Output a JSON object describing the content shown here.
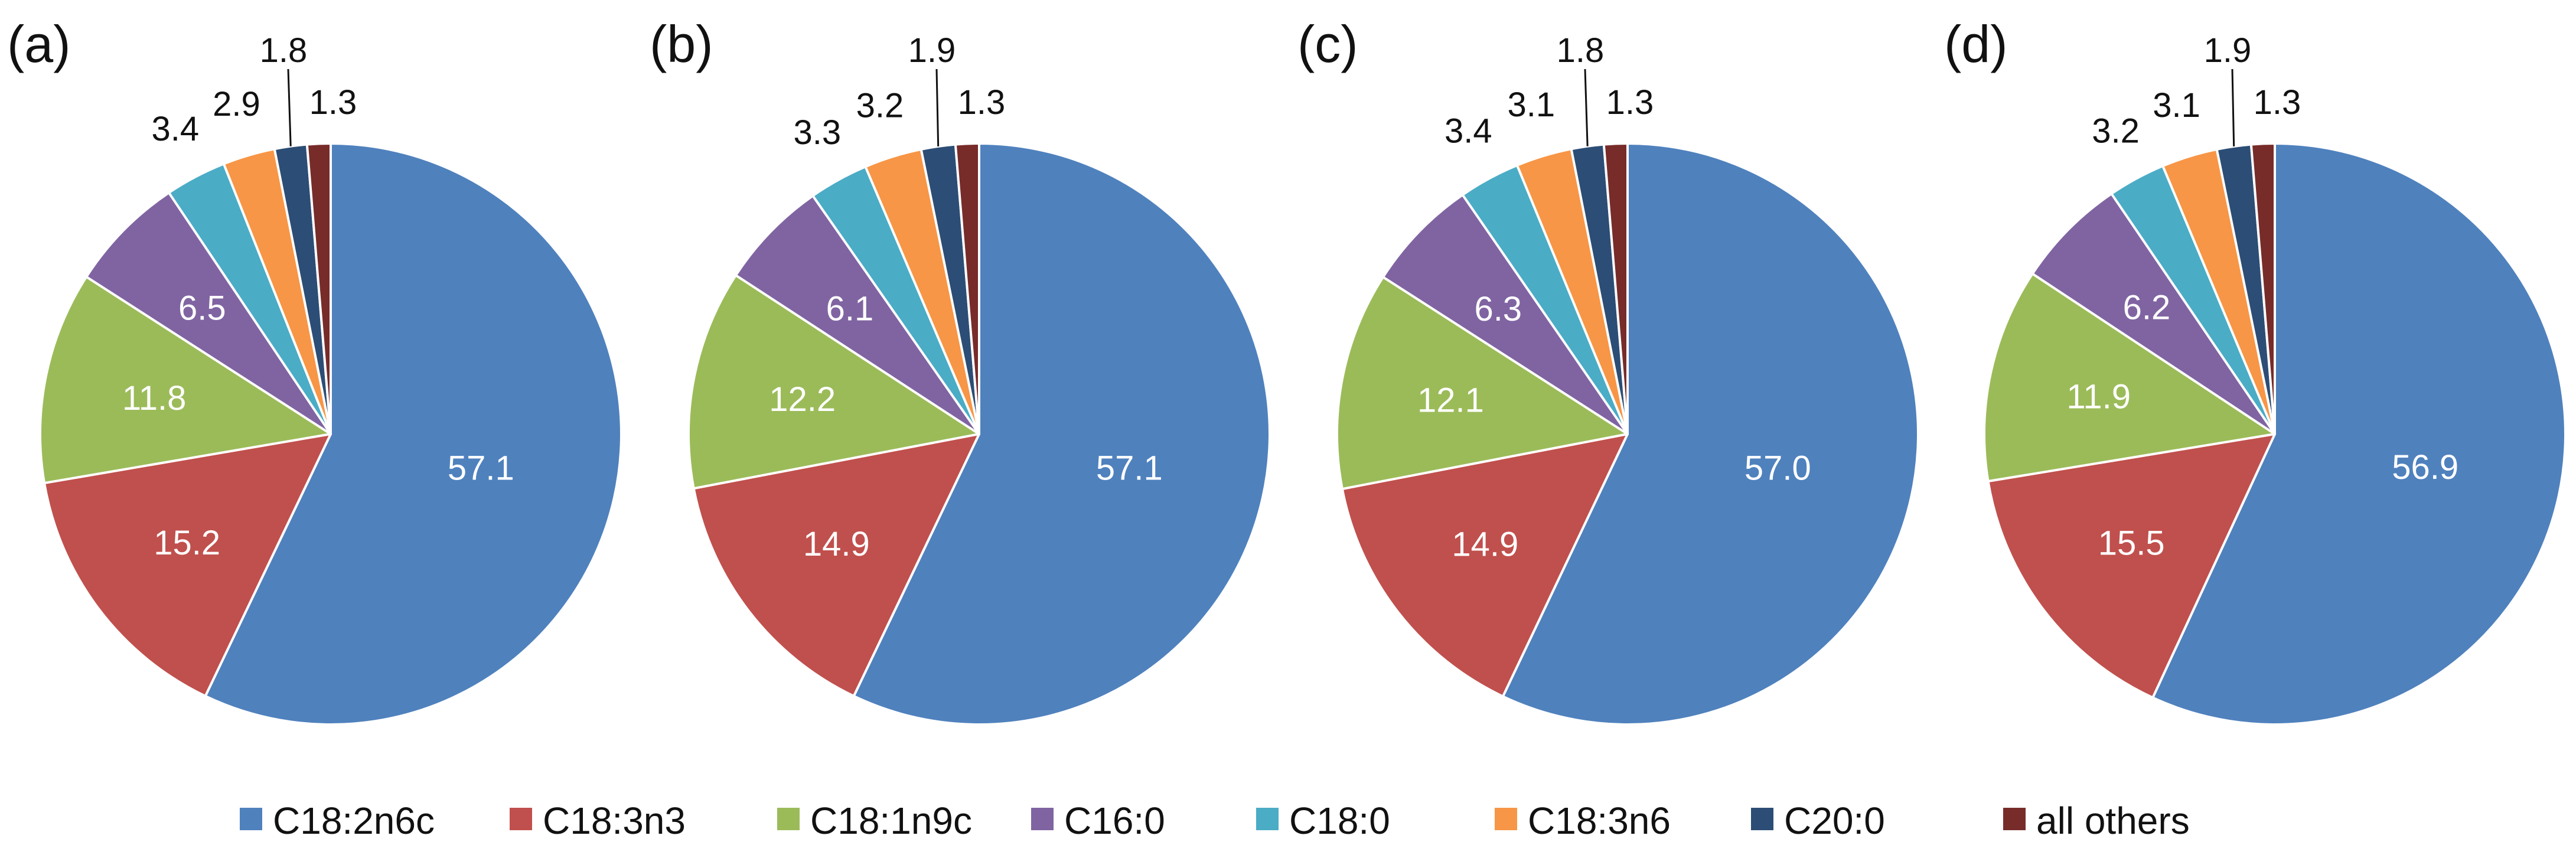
{
  "chart_data": [
    {
      "type": "pie",
      "title": "(a)",
      "categories": [
        "C18:2n6c",
        "C18:3n3",
        "C18:1n9c",
        "C16:0",
        "C18:0",
        "C18:3n6",
        "C20:0",
        "all others"
      ],
      "values": [
        57.1,
        15.2,
        11.8,
        6.5,
        3.4,
        2.9,
        1.8,
        1.3
      ],
      "labels": [
        "57.1",
        "15.2",
        "11.8",
        "6.5",
        "3.4",
        "2.9",
        "1.8",
        "1.3"
      ]
    },
    {
      "type": "pie",
      "title": "(b)",
      "categories": [
        "C18:2n6c",
        "C18:3n3",
        "C18:1n9c",
        "C16:0",
        "C18:0",
        "C18:3n6",
        "C20:0",
        "all others"
      ],
      "values": [
        57.1,
        14.9,
        12.2,
        6.1,
        3.3,
        3.2,
        1.9,
        1.3
      ],
      "labels": [
        "57.1",
        "14.9",
        "12.2",
        "6.1",
        "3.3",
        "3.2",
        "1.9",
        "1.3"
      ]
    },
    {
      "type": "pie",
      "title": "(c)",
      "categories": [
        "C18:2n6c",
        "C18:3n3",
        "C18:1n9c",
        "C16:0",
        "C18:0",
        "C18:3n6",
        "C20:0",
        "all others"
      ],
      "values": [
        57.0,
        14.9,
        12.1,
        6.3,
        3.4,
        3.1,
        1.8,
        1.3
      ],
      "labels": [
        "57.0",
        "14.9",
        "12.1",
        "6.3",
        "3.4",
        "3.1",
        "1.8",
        "1.3"
      ]
    },
    {
      "type": "pie",
      "title": "(d)",
      "categories": [
        "C18:2n6c",
        "C18:3n3",
        "C18:1n9c",
        "C16:0",
        "C18:0",
        "C18:3n6",
        "C20:0",
        "all others"
      ],
      "values": [
        56.9,
        15.5,
        11.9,
        6.2,
        3.2,
        3.1,
        1.9,
        1.3
      ],
      "labels": [
        "56.9",
        "15.5",
        "11.9",
        "6.2",
        "3.2",
        "3.1",
        "1.9",
        "1.3"
      ]
    }
  ],
  "legend": {
    "placement": "bottom",
    "items": [
      {
        "label": "C18:2n6c",
        "color": "#4F81BD"
      },
      {
        "label": "C18:3n3",
        "color": "#C0504D"
      },
      {
        "label": "C18:1n9c",
        "color": "#9BBB59"
      },
      {
        "label": "C16:0",
        "color": "#8064A2"
      },
      {
        "label": "C18:0",
        "color": "#4BACC6"
      },
      {
        "label": "C18:3n6",
        "color": "#F79646"
      },
      {
        "label": "C20:0",
        "color": "#2C4D75"
      },
      {
        "label": "all others",
        "color": "#772C2A"
      }
    ]
  }
}
